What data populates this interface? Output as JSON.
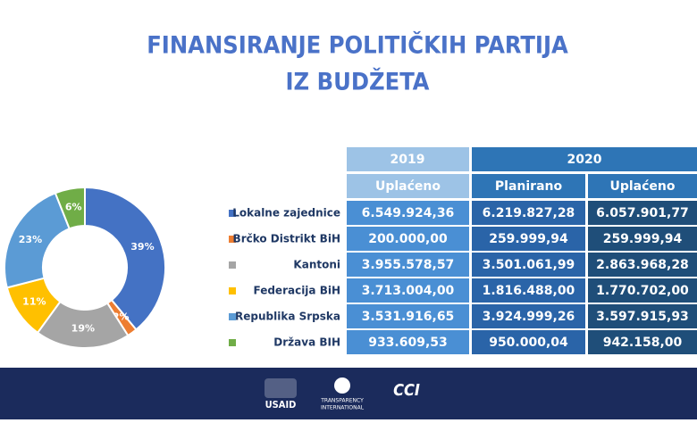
{
  "title": [
    "FINANSIRANJE POLITIČKIH PARTIJA",
    "IZ BUDŽETA"
  ],
  "chart_data": {
    "type": "pie",
    "categories": [
      "Lokalne zajednice",
      "Brčko Distrikt BiH",
      "Kantoni",
      "Federacija BiH",
      "Republika Srpska",
      "Država BIH"
    ],
    "values": [
      39,
      2,
      19,
      11,
      23,
      6
    ],
    "value_labels": [
      "39%",
      "2%",
      "19%",
      "11%",
      "23%",
      "6%"
    ],
    "colors": [
      "#4472c4",
      "#ed7d31",
      "#a5a5a5",
      "#ffc000",
      "#5b9bd5",
      "#70ad47"
    ]
  },
  "table": {
    "years": [
      "2019",
      "2020"
    ],
    "columns": [
      "Uplaćeno",
      "Planirano",
      "Uplaćeno"
    ],
    "rows": [
      [
        "6.549.924,36",
        "6.219.827,28",
        "6.057.901,77"
      ],
      [
        "200.000,00",
        "259.999,94",
        "259.999,94"
      ],
      [
        "3.955.578,57",
        "3.501.061,99",
        "2.863.968,28"
      ],
      [
        "3.713.004,00",
        "1.816.488,00",
        "1.770.702,00"
      ],
      [
        "3.531.916,65",
        "3.924.999,26",
        "3.597.915,93"
      ],
      [
        "933.609,53",
        "950.000,04",
        "942.158,00"
      ]
    ]
  },
  "footer": {
    "logos": [
      "USAID",
      "TRANSPARENCY",
      "INTERNATIONAL",
      "CCI"
    ]
  }
}
